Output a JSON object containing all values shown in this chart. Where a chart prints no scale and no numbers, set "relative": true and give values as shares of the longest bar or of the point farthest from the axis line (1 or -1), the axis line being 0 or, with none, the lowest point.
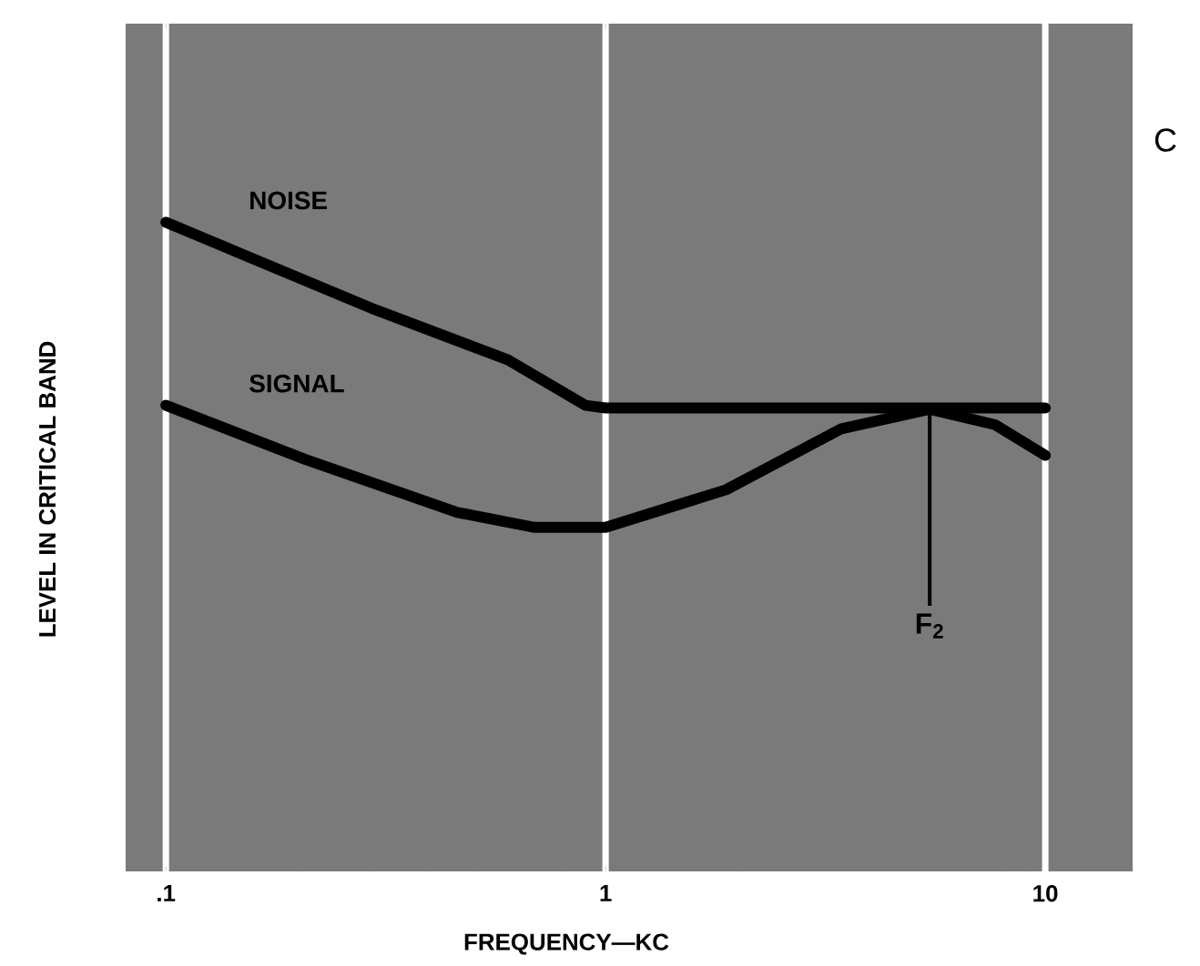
{
  "chart_data": {
    "type": "line",
    "relative": true,
    "log": "x",
    "grid": "x",
    "tick_labels": "x",
    "xlabel": "FREQUENCY—KC",
    "ylabel": "LEVEL IN CRITICAL BAND",
    "xlim": [
      0.081,
      15.8
    ],
    "xticks": [
      {
        "value": 0.1,
        "label": ".1"
      },
      1,
      10
    ],
    "series": [
      {
        "name": "NOISE",
        "color": "#000000",
        "x": [
          0.1,
          0.3,
          0.6,
          0.9,
          1,
          10
        ],
        "values": [
          1.0,
          0.865,
          0.788,
          0.718,
          0.714,
          0.714
        ]
      },
      {
        "name": "SIGNAL",
        "color": "#000000",
        "x": [
          0.1,
          0.207,
          0.46,
          0.69,
          1,
          1.88,
          3.44,
          5.46,
          7.7,
          10
        ],
        "values": [
          0.718,
          0.635,
          0.553,
          0.53,
          0.53,
          0.588,
          0.682,
          0.712,
          0.688,
          0.641
        ]
      }
    ],
    "annotations": [
      {
        "text": "F$_{2}$",
        "x": 5.46,
        "y": 0.712
      },
      "C"
    ]
  }
}
